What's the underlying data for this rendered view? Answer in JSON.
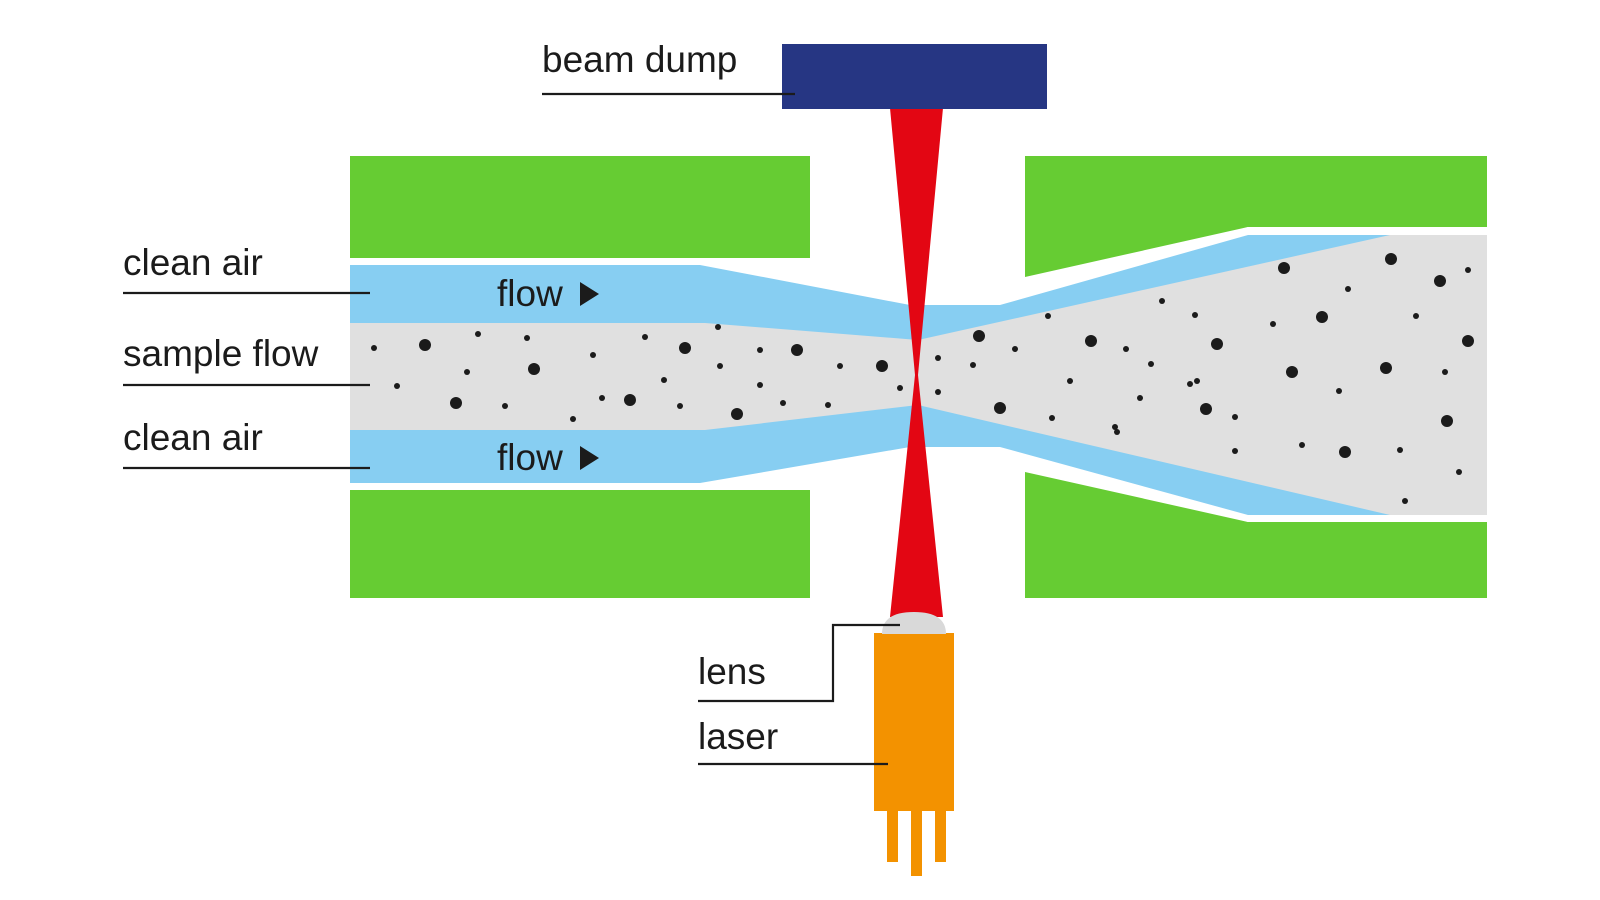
{
  "labels": {
    "beam_dump": "beam dump",
    "clean_air_top": "clean air",
    "sample_flow": "sample flow",
    "clean_air_bottom": "clean air",
    "flow_top": "flow",
    "flow_bottom": "flow",
    "lens": "lens",
    "laser": "laser"
  },
  "colors": {
    "housing": "#66cc33",
    "clean_air": "#87cef2",
    "sample": "#e0e0e0",
    "beam": "#e30613",
    "beam_dump": "#263683",
    "laser": "#f39200",
    "lens": "#d9d9d9",
    "particle": "#1b1b1b",
    "text": "#1b1b1b"
  },
  "icons": {
    "flow_arrow": "play-triangle-icon"
  }
}
